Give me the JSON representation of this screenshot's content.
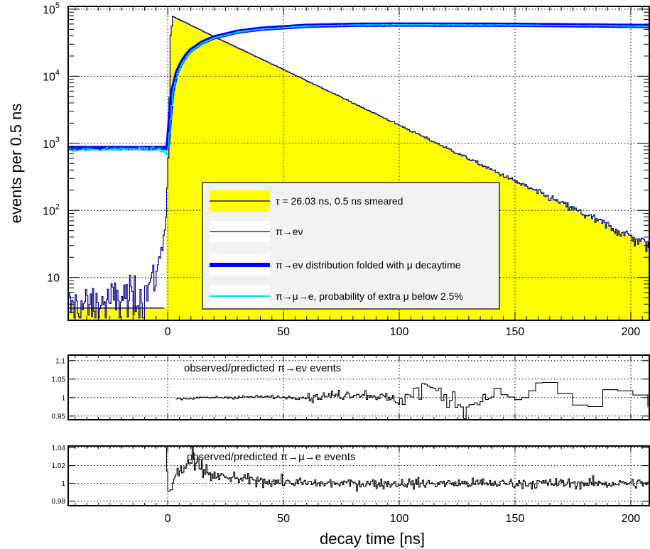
{
  "chart_data": [
    {
      "panel": "main",
      "type": "line",
      "ylabel": "events per 0.5 ns",
      "xlim": [
        -43,
        208
      ],
      "ylim": [
        2.3,
        110000
      ],
      "yscale": "log",
      "grid": true,
      "x_ticks": [
        "0",
        "50",
        "100",
        "150",
        "200"
      ],
      "x_tick_values": [
        0,
        50,
        100,
        150,
        200
      ],
      "y_tick_values": [
        10,
        100,
        1000,
        10000,
        100000
      ],
      "y_ticks": [
        {
          "base": "10",
          "exp": ""
        },
        {
          "base": "10",
          "exp": "2"
        },
        {
          "base": "10",
          "exp": "3"
        },
        {
          "base": "10",
          "exp": "4"
        },
        {
          "base": "10",
          "exp": "5"
        }
      ],
      "legend_position": "center",
      "legend": [
        {
          "label": "τ = 26.03 ns, 0.5 ns smeared",
          "color": "#ffff00",
          "style": "fill"
        },
        {
          "label": "π→eν",
          "color": "#00008b",
          "style": "line"
        },
        {
          "label": "π→eν distribution folded with μ decaytime",
          "color": "#0000ff",
          "style": "thick-line"
        },
        {
          "label": "π→μ→e, probability of extra μ below 2.5%",
          "color": "#00e5ee",
          "style": "line"
        }
      ],
      "series": [
        {
          "name": "τ = 26.03 ns, 0.5 ns smeared",
          "style": "filled histogram",
          "color": "#ffff00",
          "x": [
            -43,
            -1,
            0,
            1,
            2,
            10,
            25,
            50,
            75,
            100,
            125,
            150,
            175,
            200,
            208
          ],
          "y": [
            3.5,
            3.5,
            2000,
            45000,
            78000,
            57000,
            32000,
            12500,
            4800,
            1850,
            710,
            270,
            105,
            40,
            30
          ]
        },
        {
          "name": "π→eν",
          "style": "histogram",
          "color": "#00008b",
          "x": [
            -43,
            -30,
            -20,
            -10,
            -5,
            -3,
            -1,
            0,
            1,
            2,
            10,
            25,
            50,
            75,
            100,
            125,
            150,
            175,
            200,
            208
          ],
          "y": [
            3.5,
            4,
            5,
            6,
            12,
            25,
            80,
            600,
            40000,
            78000,
            57000,
            32000,
            12500,
            4800,
            1850,
            710,
            270,
            105,
            40,
            30
          ]
        },
        {
          "name": "π→eν distribution folded with μ decaytime",
          "style": "thick line",
          "color": "#0000ff",
          "x": [
            -43,
            -3,
            -1,
            0,
            1,
            2,
            4,
            6,
            8,
            10,
            15,
            20,
            30,
            40,
            60,
            80,
            100,
            150,
            200,
            208
          ],
          "y": [
            850,
            850,
            850,
            900,
            2500,
            6000,
            11500,
            16000,
            20500,
            24500,
            32000,
            38000,
            46000,
            51000,
            56500,
            58500,
            59000,
            58500,
            56500,
            56000
          ]
        },
        {
          "name": "π→μ→e, probability of extra μ below 2.5%",
          "style": "histogram",
          "color": "#00e5ee",
          "x": [
            -43,
            -20,
            -10,
            -3,
            -1,
            0,
            1,
            2,
            4,
            6,
            8,
            10,
            15,
            20,
            30,
            40,
            60,
            80,
            100,
            150,
            200,
            208
          ],
          "y": [
            800,
            820,
            830,
            800,
            700,
            880,
            2300,
            5800,
            11000,
            15500,
            20000,
            24000,
            31500,
            37500,
            45500,
            50500,
            56000,
            58000,
            58500,
            58000,
            56000,
            55500
          ]
        }
      ]
    },
    {
      "panel": "ratio-1",
      "type": "line",
      "title": "observed/predicted π→eν events",
      "xlim": [
        -43,
        208
      ],
      "ylim": [
        0.94,
        1.115
      ],
      "grid": true,
      "y_tick_values": [
        0.95,
        1,
        1.05,
        1.1
      ],
      "y_ticks": [
        "0.95",
        "1",
        "1.05",
        "1.1"
      ],
      "x_tick_values": [
        0,
        50,
        100,
        150,
        200
      ],
      "series": [
        {
          "style": "histogram",
          "color": "#000000",
          "x": [
            -1,
            5,
            20,
            40,
            60,
            80,
            90,
            100,
            110,
            120,
            130,
            140,
            150,
            160,
            170,
            180,
            190,
            200,
            208
          ],
          "y": [
            1.0,
            0.997,
            1.0,
            1.002,
            1.0,
            1.01,
            1.005,
            0.99,
            1.03,
            1.0,
            0.975,
            1.02,
            0.99,
            1.045,
            1.0,
            0.96,
            1.03,
            1.01,
            0.975
          ]
        }
      ]
    },
    {
      "panel": "ratio-2",
      "type": "line",
      "title": "observed/predicted π→μ→e events",
      "xlim": [
        -43,
        208
      ],
      "ylim": [
        0.975,
        1.042
      ],
      "grid": true,
      "y_tick_values": [
        0.98,
        1,
        1.02,
        1.04
      ],
      "y_ticks": [
        "0.98",
        "1",
        "1.02",
        "1.04"
      ],
      "x_tick_values": [
        0,
        50,
        100,
        150,
        200
      ],
      "x_ticks": [
        "0",
        "50",
        "100",
        "150",
        "200"
      ],
      "xlabel": "decay time  [ns]",
      "series": [
        {
          "style": "histogram",
          "color": "#000000",
          "x": [
            -1,
            0,
            2,
            4,
            6,
            8,
            10,
            12,
            15,
            20,
            30,
            40,
            60,
            80,
            100,
            120,
            140,
            160,
            180,
            200,
            208
          ],
          "y": [
            1.04,
            0.985,
            1.0,
            1.012,
            1.015,
            1.02,
            1.025,
            1.018,
            1.015,
            1.008,
            1.005,
            1.003,
            1.0,
            1.0,
            1.0,
            1.0,
            1.0,
            1.0,
            1.0,
            1.0,
            1.0
          ]
        }
      ]
    }
  ]
}
